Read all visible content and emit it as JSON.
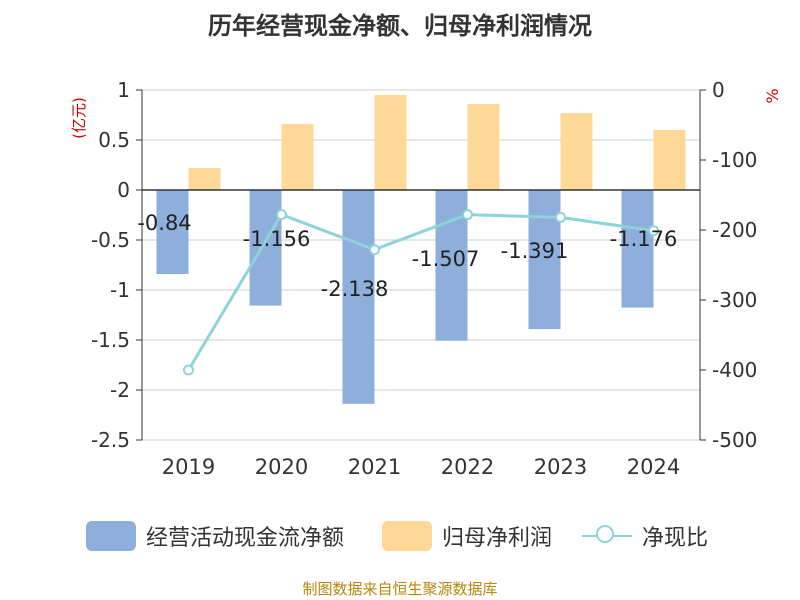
{
  "chart_data": {
    "type": "bar",
    "title": "历年经营现金净额、归母净利润情况",
    "categories": [
      "2019",
      "2020",
      "2021",
      "2022",
      "2023",
      "2024"
    ],
    "series": [
      {
        "name": "经营活动现金流净额",
        "type": "bar",
        "axis": "left",
        "color": "#8eaedc",
        "values": [
          -0.84,
          -1.156,
          -2.138,
          -1.507,
          -1.391,
          -1.176
        ],
        "labels": [
          "-0.84",
          "-1.156",
          "-2.138",
          "-1.507",
          "-1.391",
          "-1.176"
        ]
      },
      {
        "name": "归母净利润",
        "type": "bar",
        "axis": "left",
        "color": "#fdd897",
        "values": [
          0.22,
          0.66,
          0.95,
          0.86,
          0.77,
          0.6
        ]
      },
      {
        "name": "净现比",
        "type": "line",
        "axis": "right",
        "color": "#8dd3d8",
        "values": [
          -400,
          -178,
          -228,
          -178,
          -182,
          -201
        ]
      }
    ],
    "left_axis": {
      "label": "(亿元)",
      "ylim": [
        -2.5,
        1
      ],
      "ticks": [
        1,
        0.5,
        0,
        -0.5,
        -1,
        -1.5,
        -2,
        -2.5
      ],
      "tick_labels": [
        "1",
        "0.5",
        "0",
        "-0.5",
        "-1",
        "-1.5",
        "-2",
        "-2.5"
      ]
    },
    "right_axis": {
      "label": "%",
      "ylim": [
        -500,
        0
      ],
      "ticks": [
        0,
        -100,
        -200,
        -300,
        -400,
        -500
      ],
      "tick_labels": [
        "0",
        "-100",
        "-200",
        "-300",
        "-400",
        "-500"
      ]
    },
    "grid": true,
    "legend_position": "bottom"
  },
  "legend": [
    {
      "label": "经营活动现金流净额",
      "color": "#8eaedc",
      "kind": "bar"
    },
    {
      "label": "归母净利润",
      "color": "#fdd897",
      "kind": "bar"
    },
    {
      "label": "净现比",
      "color": "#8dd3d8",
      "kind": "line"
    }
  ],
  "source": "制图数据来自恒生聚源数据库",
  "colors": {
    "axis_label": "#cc0000",
    "text": "#333333",
    "grid": "#cccccc"
  }
}
